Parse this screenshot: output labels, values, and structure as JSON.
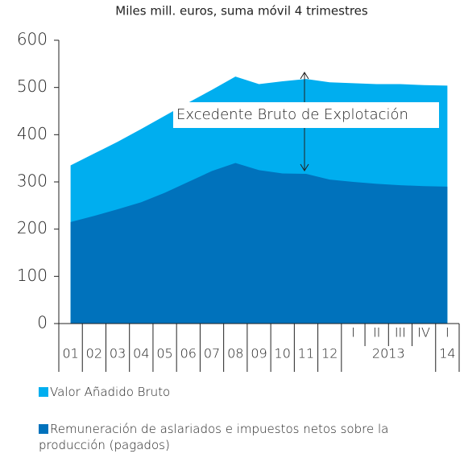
{
  "chart_data": {
    "type": "area",
    "subtitle": "Miles mill. euros, suma móvil 4 trimestres",
    "annotation": "Excedente Bruto de Explotación",
    "categories": [
      "01",
      "02",
      "03",
      "04",
      "05",
      "06",
      "07",
      "08",
      "09",
      "10",
      "11",
      "12",
      "I",
      "II",
      "III",
      "IV",
      "I"
    ],
    "groups": [
      {
        "label": "2013",
        "categories": [
          "I",
          "II",
          "III",
          "IV"
        ]
      },
      {
        "label": "14",
        "categories": [
          "I"
        ]
      }
    ],
    "series": [
      {
        "name": "Valor Añadido Bruto",
        "color": "#00aeef",
        "values": [
          335,
          360,
          385,
          412,
          440,
          468,
          495,
          523,
          507,
          513,
          518,
          511,
          509,
          507,
          507,
          505,
          504
        ]
      },
      {
        "name": "Remuneración de aslariados  e impuestos netos sobre la producción (pagados)",
        "color": "#0072bc",
        "values": [
          215,
          228,
          242,
          257,
          277,
          300,
          323,
          340,
          325,
          318,
          317,
          305,
          300,
          296,
          293,
          291,
          290
        ]
      }
    ],
    "ylim": [
      0,
      600
    ],
    "yticks": [
      0,
      100,
      200,
      300,
      400,
      500,
      600
    ],
    "grid": false
  }
}
